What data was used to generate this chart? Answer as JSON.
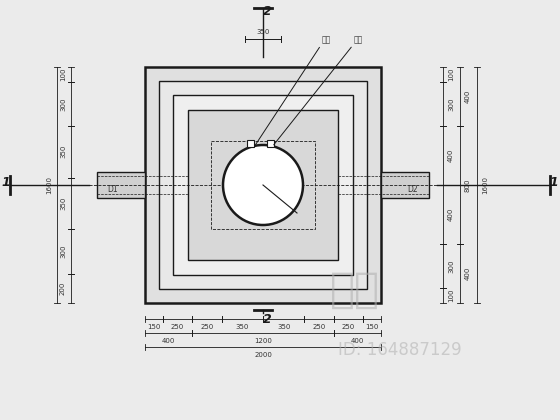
{
  "bg_color": "#ebebeb",
  "fig_width": 5.6,
  "fig_height": 4.2,
  "dpi": 100,
  "watermark": "知末",
  "watermark2": "ID: 164887129",
  "label_section_top": "2",
  "label_section_bottom": "2",
  "label_section_left": "1",
  "label_section_right": "1",
  "label_D1": "D1",
  "label_D2": "D2",
  "label_top1": "配筋",
  "label_top2": "盖座",
  "dim_top": "350",
  "left_dims": [
    "100",
    "300",
    "350",
    "350",
    "300",
    "200"
  ],
  "left_total": "1600",
  "right_dims_col1": [
    "100",
    "300",
    "400",
    "400",
    "300",
    "100"
  ],
  "right_dims_col2": [
    "400",
    "800",
    "400"
  ],
  "right_total": "1600",
  "bottom_dims_row1": [
    "150",
    "250",
    "250",
    "350",
    "350",
    "250",
    "250",
    "150"
  ],
  "bottom_dims_row2": [
    "400",
    "1200",
    "400"
  ],
  "bottom_dims_row3": "2000"
}
